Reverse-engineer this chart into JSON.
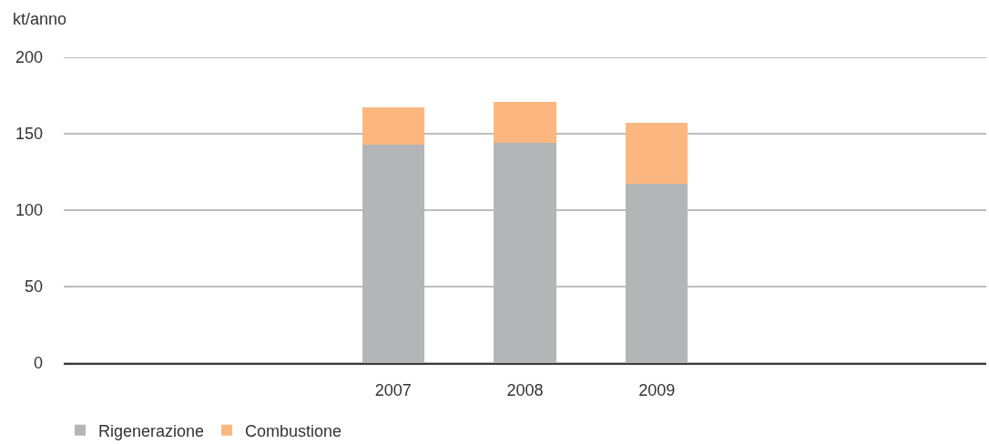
{
  "chart_data": {
    "type": "bar",
    "stacked": true,
    "ylabel": "kt/anno",
    "categories": [
      null,
      null,
      "2007",
      "2008",
      "2009",
      null,
      null
    ],
    "series": [
      {
        "name": "Rigenerazione",
        "color": "#b4b5b7",
        "values": [
          null,
          null,
          143,
          144,
          117,
          null,
          null
        ]
      },
      {
        "name": "Combustione",
        "color": "#fbb77f",
        "values": [
          null,
          null,
          24,
          27,
          40,
          null,
          null
        ]
      }
    ],
    "ylim": [
      0,
      200
    ],
    "yticks": [
      0,
      50,
      100,
      150,
      200
    ],
    "grid": "y",
    "legend": "bottom left"
  }
}
